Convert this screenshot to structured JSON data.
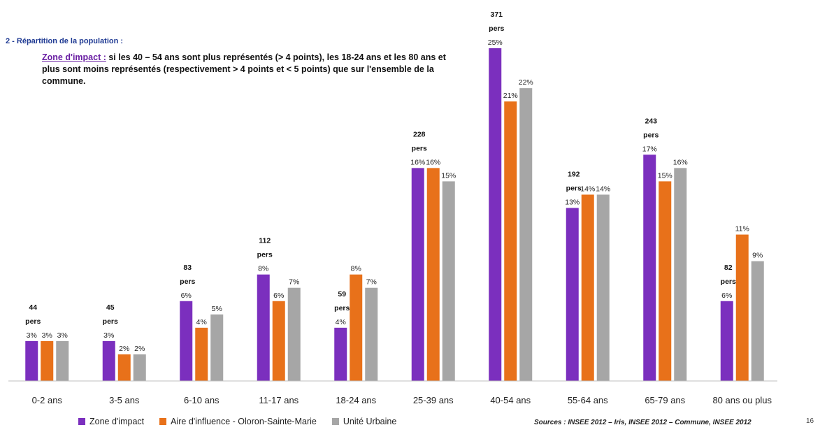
{
  "header": {
    "section_title": "2 - Répartition de la population :",
    "intro_lead": "Zone d'impact :",
    "intro_text": " si les 40 – 54 ans sont plus représentés (> 4 points), les 18-24 ans et les 80 ans et plus sont moins représentés (respectivement > 4 points et < 5 points) que sur l'ensemble de la commune."
  },
  "chart_data": {
    "type": "bar",
    "categories": [
      "0-2 ans",
      "3-5 ans",
      "6-10 ans",
      "11-17 ans",
      "18-24 ans",
      "25-39 ans",
      "40-54 ans",
      "55-64 ans",
      "65-79 ans",
      "80 ans ou plus"
    ],
    "series": [
      {
        "name": "Zone d'impact",
        "color": "#7b2fbe",
        "values": [
          3,
          3,
          6,
          8,
          4,
          16,
          25,
          13,
          17,
          6
        ],
        "labels": [
          "3%",
          "3%",
          "6%",
          "8%",
          "4%",
          "16%",
          "25%",
          "13%",
          "17%",
          "6%"
        ]
      },
      {
        "name": "Aire d'influence - Oloron-Sainte-Marie",
        "color": "#e8711a",
        "values": [
          3,
          2,
          4,
          6,
          8,
          16,
          21,
          14,
          15,
          11
        ],
        "labels": [
          "3%",
          "2%",
          "4%",
          "6%",
          "8%",
          "16%",
          "21%",
          "14%",
          "15%",
          "11%"
        ]
      },
      {
        "name": "Unité Urbaine",
        "color": "#a6a6a6",
        "values": [
          3,
          2,
          5,
          7,
          7,
          15,
          22,
          14,
          16,
          9
        ],
        "labels": [
          "3%",
          "2%",
          "5%",
          "7%",
          "7%",
          "15%",
          "22%",
          "14%",
          "16%",
          "9%"
        ]
      }
    ],
    "persons": [
      "44",
      "45",
      "83",
      "112",
      "59",
      "228",
      "371",
      "192",
      "243",
      "82"
    ],
    "persons_unit": "pers",
    "ylim": [
      0,
      25
    ],
    "grid": false,
    "legend": "bottom",
    "title": "",
    "xlabel": "",
    "ylabel": ""
  },
  "legend": {
    "items": [
      {
        "name": "Zone d'impact",
        "color": "#7b2fbe"
      },
      {
        "name": "Aire d'influence - Oloron-Sainte-Marie",
        "color": "#e8711a"
      },
      {
        "name": "Unité Urbaine",
        "color": "#a6a6a6"
      }
    ]
  },
  "footer": {
    "sources": "Sources : INSEE 2012 – Iris, INSEE 2012 – Commune, INSEE 2012",
    "page_number": "16"
  }
}
